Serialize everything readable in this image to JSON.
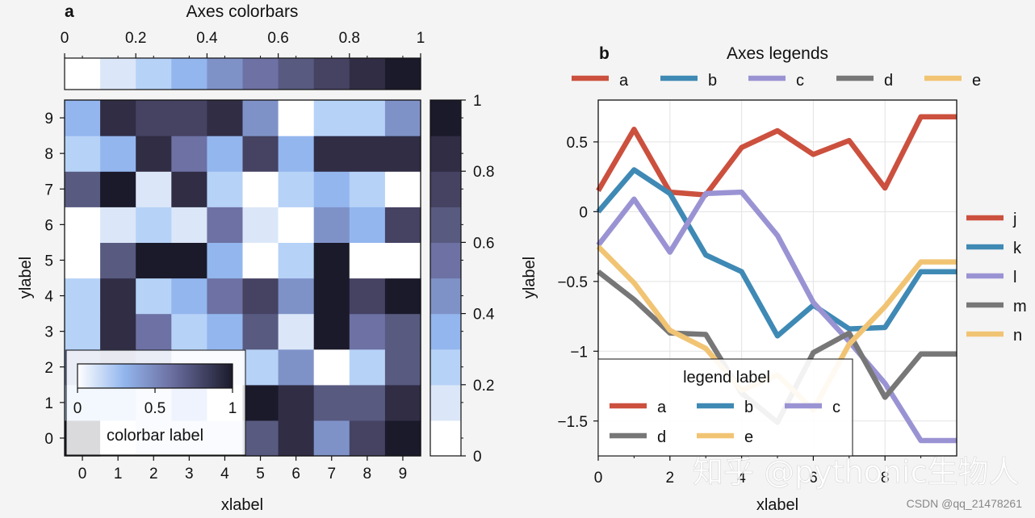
{
  "chart_data": [
    {
      "panel_letter": "a",
      "type": "heatmap",
      "title": "Axes colorbars",
      "xlabel": "xlabel",
      "ylabel": "ylabel",
      "x_ticks": [
        "0",
        "1",
        "2",
        "3",
        "4",
        "5",
        "6",
        "7",
        "8",
        "9"
      ],
      "y_ticks": [
        "0",
        "1",
        "2",
        "3",
        "4",
        "5",
        "6",
        "7",
        "8",
        "9"
      ],
      "zlim": [
        0,
        1
      ],
      "cmap": [
        "#ffffff",
        "#dbe7f8",
        "#b6d2f7",
        "#93b6ee",
        "#7f92c8",
        "#6d71a3",
        "#585a80",
        "#454262",
        "#302d45",
        "#1b1a2b"
      ],
      "values": [
        [
          0.9,
          0.05,
          0.1,
          0.12,
          0.1,
          0.6,
          0.8,
          0.42,
          0.72,
          0.95
        ],
        [
          0.2,
          0.25,
          0.1,
          0.3,
          0.08,
          0.9,
          0.82,
          0.65,
          0.6,
          0.82
        ],
        [
          0.45,
          0.55,
          0.4,
          0.1,
          0.15,
          0.22,
          0.4,
          0.02,
          0.2,
          0.6
        ],
        [
          0.22,
          0.8,
          0.5,
          0.2,
          0.35,
          0.65,
          0.15,
          0.9,
          0.5,
          0.68
        ],
        [
          0.2,
          0.82,
          0.28,
          0.3,
          0.58,
          0.78,
          0.4,
          0.92,
          0.75,
          0.9
        ],
        [
          0.05,
          0.6,
          0.95,
          0.98,
          0.3,
          0.05,
          0.2,
          0.98,
          0.0,
          0.0
        ],
        [
          0.0,
          0.15,
          0.25,
          0.1,
          0.5,
          0.1,
          0.05,
          0.45,
          0.38,
          0.72
        ],
        [
          0.65,
          0.98,
          0.15,
          0.8,
          0.22,
          0.0,
          0.28,
          0.3,
          0.25,
          0.0
        ],
        [
          0.25,
          0.3,
          0.82,
          0.55,
          0.3,
          0.7,
          0.3,
          0.82,
          0.85,
          0.85
        ],
        [
          0.35,
          0.82,
          0.7,
          0.7,
          0.85,
          0.4,
          0.08,
          0.25,
          0.25,
          0.4
        ]
      ],
      "top_colorbar": {
        "ticks": [
          "0",
          "0.2",
          "0.4",
          "0.6",
          "0.8",
          "1"
        ]
      },
      "right_colorbar": {
        "ticks": [
          "0",
          "0.2",
          "0.4",
          "0.6",
          "0.8",
          "1"
        ]
      },
      "inset_colorbar": {
        "label": "colorbar label",
        "ticks": [
          "0",
          "0.5",
          "1"
        ]
      }
    },
    {
      "panel_letter": "b",
      "type": "line",
      "title": "Axes legends",
      "xlabel": "xlabel",
      "ylabel": "ylabel",
      "xlim": [
        0,
        10
      ],
      "ylim": [
        -1.75,
        0.8
      ],
      "x_ticks": [
        "0",
        "2",
        "4",
        "6",
        "8"
      ],
      "y_ticks": [
        "0.5",
        "0",
        "−0.5",
        "−1",
        "−1.5"
      ],
      "x": [
        0,
        1,
        2,
        3,
        4,
        5,
        6,
        7,
        8,
        9,
        10
      ],
      "series": [
        {
          "name": "a",
          "color": "#cc503e",
          "values": [
            0.15,
            0.59,
            0.14,
            0.12,
            0.46,
            0.58,
            0.41,
            0.51,
            0.17,
            0.68,
            0.68
          ]
        },
        {
          "name": "b",
          "color": "#3f89b5",
          "values": [
            0.0,
            0.3,
            0.13,
            -0.31,
            -0.43,
            -0.89,
            -0.67,
            -0.84,
            -0.83,
            -0.43,
            -0.43
          ]
        },
        {
          "name": "c",
          "color": "#9a93d3",
          "values": [
            -0.24,
            0.09,
            -0.29,
            0.13,
            0.14,
            -0.17,
            -0.65,
            -0.93,
            -1.23,
            -1.64,
            -1.64
          ]
        },
        {
          "name": "d",
          "color": "#777777",
          "values": [
            -0.43,
            -0.63,
            -0.87,
            -0.88,
            -1.3,
            -1.51,
            -1.01,
            -0.87,
            -1.33,
            -1.02,
            -1.02
          ]
        },
        {
          "name": "e",
          "color": "#f1c474",
          "values": [
            -0.25,
            -0.51,
            -0.85,
            -0.98,
            -1.28,
            -1.17,
            -1.42,
            -0.95,
            -0.68,
            -0.36,
            -0.36
          ]
        }
      ],
      "top_legend": [
        "a",
        "b",
        "c",
        "d",
        "e"
      ],
      "right_legend": [
        {
          "name": "j",
          "color": "#cc503e"
        },
        {
          "name": "k",
          "color": "#3f89b5"
        },
        {
          "name": "l",
          "color": "#9a93d3"
        },
        {
          "name": "m",
          "color": "#777777"
        },
        {
          "name": "n",
          "color": "#f1c474"
        }
      ],
      "inner_legend": {
        "title": "legend label",
        "entries": [
          "a",
          "b",
          "c",
          "d",
          "e"
        ]
      }
    }
  ],
  "watermark": {
    "text": "知乎 @pythonic生物人"
  },
  "credit": "CSDN @qq_21478261"
}
